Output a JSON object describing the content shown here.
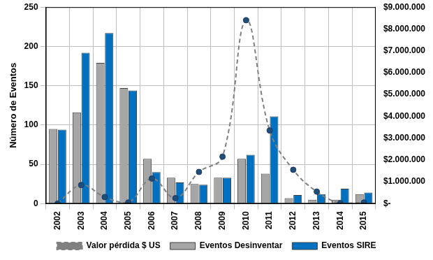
{
  "chart_data": {
    "type": "bar",
    "categories": [
      "2002",
      "2003",
      "2004",
      "2005",
      "2006",
      "2007",
      "2008",
      "2009",
      "2010",
      "2011",
      "2012",
      "2013",
      "2014",
      "2015"
    ],
    "y_label": "Número de Eventos",
    "ylim": [
      0,
      250
    ],
    "yticks": [
      0,
      50,
      100,
      150,
      200,
      250
    ],
    "y2lim": [
      0,
      9000000
    ],
    "y2ticks": [
      {
        "value": 0,
        "label": "$-"
      },
      {
        "value": 1000000,
        "label": "$1.000.000"
      },
      {
        "value": 2000000,
        "label": "$2.000.000"
      },
      {
        "value": 3000000,
        "label": "$3.000.000"
      },
      {
        "value": 4000000,
        "label": "$4.000.000"
      },
      {
        "value": 5000000,
        "label": "$5.000.000"
      },
      {
        "value": 6000000,
        "label": "$6.000.000"
      },
      {
        "value": 7000000,
        "label": "$7.000.000"
      },
      {
        "value": 8000000,
        "label": "$8.000.000"
      },
      {
        "value": 9000000,
        "label": "$9.000.000"
      }
    ],
    "grid": true,
    "legend": "bottom",
    "series": [
      {
        "name": "Eventos Desinventar",
        "type": "bar",
        "color": "#a6a6a6",
        "values": [
          95,
          116,
          179,
          147,
          57,
          33,
          25,
          33,
          57,
          38,
          7,
          5,
          5,
          12
        ]
      },
      {
        "name": "Eventos SIRE",
        "type": "bar",
        "color": "#0070c0",
        "values": [
          94,
          192,
          217,
          144,
          40,
          27,
          24,
          33,
          62,
          111,
          11,
          12,
          19,
          14
        ]
      },
      {
        "name": "Valor pérdida $ US",
        "type": "line",
        "axis": "y2",
        "color": "#808080",
        "line_style": "dashed",
        "marker": "circle",
        "values": [
          0,
          850000,
          300000,
          50000,
          1150000,
          250000,
          1450000,
          2150000,
          8400000,
          3350000,
          1550000,
          550000,
          20000,
          50000
        ]
      }
    ]
  }
}
